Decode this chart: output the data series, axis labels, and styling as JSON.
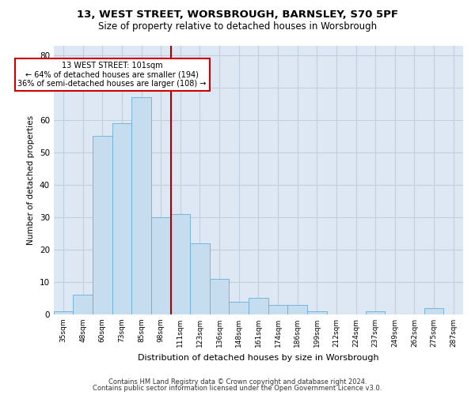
{
  "title1": "13, WEST STREET, WORSBROUGH, BARNSLEY, S70 5PF",
  "title2": "Size of property relative to detached houses in Worsbrough",
  "xlabel": "Distribution of detached houses by size in Worsbrough",
  "ylabel": "Number of detached properties",
  "footnote1": "Contains HM Land Registry data © Crown copyright and database right 2024.",
  "footnote2": "Contains public sector information licensed under the Open Government Licence v3.0.",
  "annotation_line1": "13 WEST STREET: 101sqm",
  "annotation_line2": "← 64% of detached houses are smaller (194)",
  "annotation_line3": "36% of semi-detached houses are larger (108) →",
  "bar_color": "#c5ddef",
  "bar_edge_color": "#6aaed6",
  "vline_color": "#aa0000",
  "vline_x": 5.5,
  "categories": [
    "35sqm",
    "48sqm",
    "60sqm",
    "73sqm",
    "85sqm",
    "98sqm",
    "111sqm",
    "123sqm",
    "136sqm",
    "148sqm",
    "161sqm",
    "174sqm",
    "186sqm",
    "199sqm",
    "212sqm",
    "224sqm",
    "237sqm",
    "249sqm",
    "262sqm",
    "275sqm",
    "287sqm"
  ],
  "values": [
    1,
    6,
    55,
    59,
    67,
    30,
    31,
    22,
    11,
    4,
    5,
    3,
    3,
    1,
    0,
    0,
    1,
    0,
    0,
    2,
    0
  ],
  "ylim": [
    0,
    83
  ],
  "yticks": [
    0,
    10,
    20,
    30,
    40,
    50,
    60,
    70,
    80
  ],
  "grid_color": "#c0cfe0",
  "bg_color": "#dde8f4"
}
